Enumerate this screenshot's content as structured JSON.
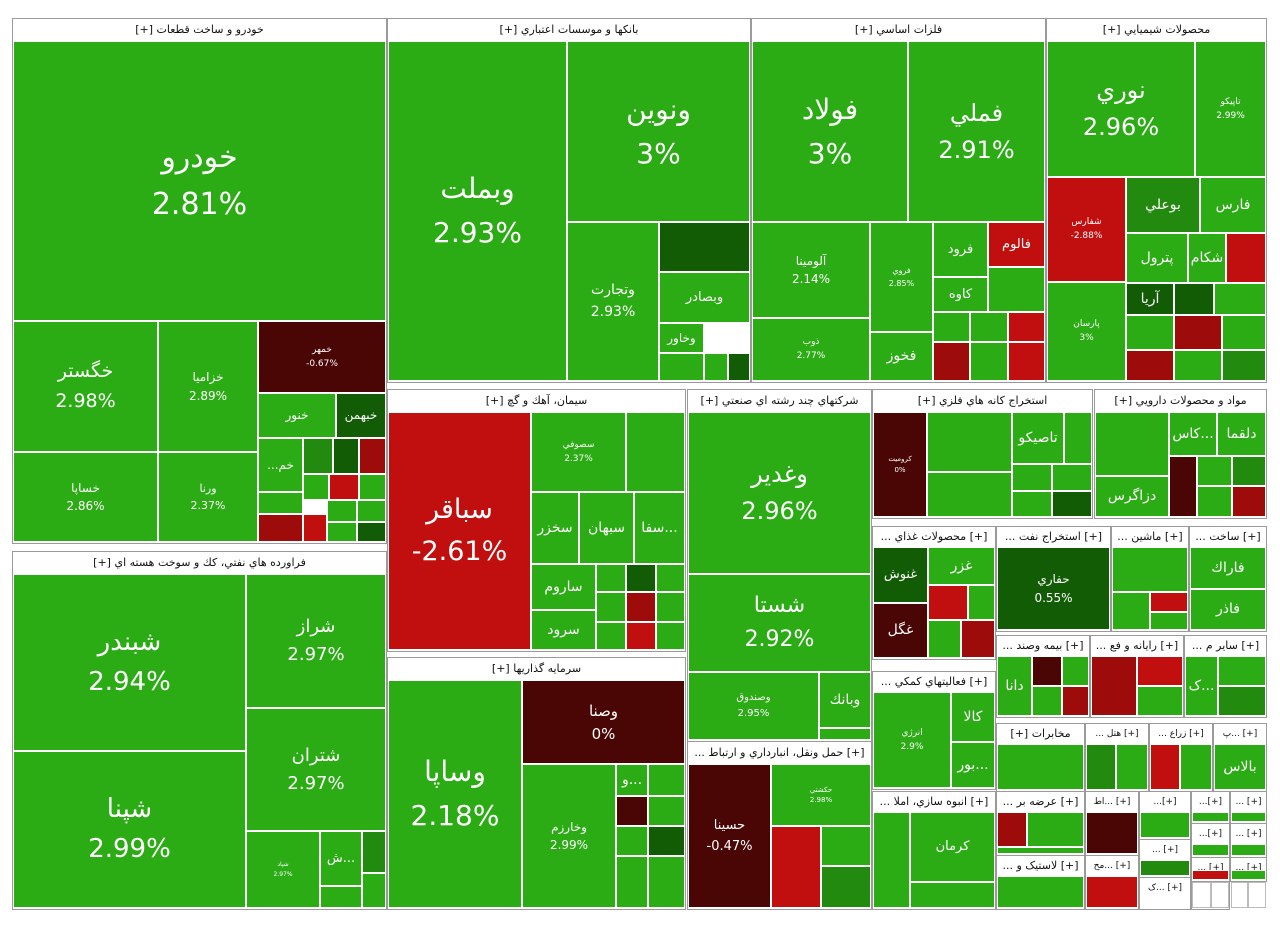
{
  "colors": {
    "up": "#2bab14",
    "up_mid": "#238a10",
    "up_dark": "#125c05",
    "down": "#c10f0f",
    "down_mid": "#9e0b0b",
    "down_dark": "#4a0505"
  },
  "sectors": [
    {
      "id": "auto",
      "title": "خودرو و ساخت قطعات [+]"
    },
    {
      "id": "bank",
      "title": "بانکها و موسسات اعتباري [+]"
    },
    {
      "id": "metal",
      "title": "فلزات اساسي [+]"
    },
    {
      "id": "chem",
      "title": "محصولات شيميايي [+]"
    },
    {
      "id": "oil",
      "title": "فراورده هاي نفتي، كك و سوخت هسته اي [+]"
    },
    {
      "id": "cement",
      "title": "سيمان، آهك و گچ [+]"
    },
    {
      "id": "multi",
      "title": "شرکتهاي چند رشته اي صنعتي [+]"
    },
    {
      "id": "mine",
      "title": "استخراج کانه هاي فلزي [+]"
    },
    {
      "id": "pharma",
      "title": "مواد و محصولات دارويي [+]"
    },
    {
      "id": "invest",
      "title": "سرمايه گذاريها [+]"
    },
    {
      "id": "food",
      "title": "[+] محصولات غذاي ..."
    },
    {
      "id": "oilext",
      "title": "[+] استخراج نفت ..."
    },
    {
      "id": "machine",
      "title": "[+] ماشين ..."
    },
    {
      "id": "build",
      "title": "[+] ساخت ..."
    },
    {
      "id": "transport",
      "title": "[+] حمل ونقل، انبارداري و ارتباط ..."
    },
    {
      "id": "insure",
      "title": "[+] بيمه وصند ..."
    },
    {
      "id": "computer",
      "title": "[+] رايانه و فع ..."
    },
    {
      "id": "other",
      "title": "[+] ساير م ..."
    },
    {
      "id": "support",
      "title": "[+] فعاليتهاي کمکي ..."
    },
    {
      "id": "telecom",
      "title": "مخابرات [+]"
    },
    {
      "id": "hotel",
      "title": "[+] هتل ..."
    },
    {
      "id": "farm",
      "title": "[+] زراع ..."
    },
    {
      "id": "pp",
      "title": "[+] ...پ"
    },
    {
      "id": "mass",
      "title": "[+] انبوه سازي، املا ..."
    },
    {
      "id": "arze",
      "title": "[+] عرضه بر ..."
    },
    {
      "id": "at",
      "title": "[+] ...اط"
    },
    {
      "id": "plastic",
      "title": "[+] لاستيک و ..."
    },
    {
      "id": "moh",
      "title": "[+] ...مح"
    },
    {
      "id": "k",
      "title": "[+] ...ک"
    },
    {
      "id": "s1",
      "title": "[+]..."
    },
    {
      "id": "s2",
      "title": "[+]..."
    },
    {
      "id": "s3",
      "title": "[+] ..."
    },
    {
      "id": "s4",
      "title": "[+] ..."
    },
    {
      "id": "s5",
      "title": "[+]..."
    },
    {
      "id": "s6",
      "title": "[+] ..."
    },
    {
      "id": "s7",
      "title": "[+] ..."
    },
    {
      "id": "s8",
      "title": "[+] ..."
    },
    {
      "id": "s9",
      "title": "[..."
    }
  ],
  "stocks": [
    {
      "sym": "خودرو",
      "chg": "2.81%"
    },
    {
      "sym": "خگستر",
      "chg": "2.98%"
    },
    {
      "sym": "خزاميا",
      "chg": "2.89%"
    },
    {
      "sym": "خمهر",
      "chg": "-0.67%"
    },
    {
      "sym": "خنور",
      "chg": ""
    },
    {
      "sym": "خبهمن",
      "chg": ""
    },
    {
      "sym": "خم...",
      "chg": ""
    },
    {
      "sym": "خساپا",
      "chg": "2.86%"
    },
    {
      "sym": "ورنا",
      "chg": "2.37%"
    },
    {
      "sym": "وبملت",
      "chg": "2.93%"
    },
    {
      "sym": "ونوين",
      "chg": "3%"
    },
    {
      "sym": "وتجارت",
      "chg": "2.93%"
    },
    {
      "sym": "وبصادر",
      "chg": ""
    },
    {
      "sym": "وخاور",
      "chg": ""
    },
    {
      "sym": "...و",
      "chg": ""
    },
    {
      "sym": "فولاد",
      "chg": "3%"
    },
    {
      "sym": "فملي",
      "chg": "2.91%"
    },
    {
      "sym": "آلومينا",
      "chg": "2.14%"
    },
    {
      "sym": "فروي",
      "chg": "2.85%"
    },
    {
      "sym": "فرود",
      "chg": ""
    },
    {
      "sym": "فالوم",
      "chg": ""
    },
    {
      "sym": "کاوه",
      "chg": ""
    },
    {
      "sym": "ذوب",
      "chg": "2.77%"
    },
    {
      "sym": "فخوز",
      "chg": ""
    },
    {
      "sym": "نوري",
      "chg": "2.96%"
    },
    {
      "sym": "تاپيکو",
      "chg": "2.99%"
    },
    {
      "sym": "شفارس",
      "chg": "-2.88%"
    },
    {
      "sym": "بوعلي",
      "chg": ""
    },
    {
      "sym": "فارس",
      "chg": ""
    },
    {
      "sym": "پترول",
      "chg": ""
    },
    {
      "sym": "شکام",
      "chg": ""
    },
    {
      "sym": "آريا",
      "chg": ""
    },
    {
      "sym": "پارسان",
      "chg": "3%"
    },
    {
      "sym": "شبندر",
      "chg": "2.94%"
    },
    {
      "sym": "شراز",
      "chg": "2.97%"
    },
    {
      "sym": "شتران",
      "chg": "2.97%"
    },
    {
      "sym": "شپنا",
      "chg": "2.99%"
    },
    {
      "sym": "شپاد",
      "chg": "2.97%"
    },
    {
      "sym": "...ش",
      "chg": ""
    },
    {
      "sym": "سباقر",
      "chg": "-2.61%"
    },
    {
      "sym": "سصوفي",
      "chg": "2.37%"
    },
    {
      "sym": "سخزر",
      "chg": ""
    },
    {
      "sym": "سبهان",
      "chg": ""
    },
    {
      "sym": "...سفا",
      "chg": ""
    },
    {
      "sym": "ساروم",
      "chg": ""
    },
    {
      "sym": "سرود",
      "chg": ""
    },
    {
      "sym": "وغدير",
      "chg": "2.96%"
    },
    {
      "sym": "شستا",
      "chg": "2.92%"
    },
    {
      "sym": "وصندوق",
      "chg": "2.95%"
    },
    {
      "sym": "وبانك",
      "chg": ""
    },
    {
      "sym": "تاصيكو",
      "chg": ""
    },
    {
      "sym": "کروميت",
      "chg": "0%"
    },
    {
      "sym": "دلقما",
      "chg": ""
    },
    {
      "sym": "...كاس",
      "chg": ""
    },
    {
      "sym": "دزاگرس",
      "chg": ""
    },
    {
      "sym": "وساپا",
      "chg": "2.18%"
    },
    {
      "sym": "وصنا",
      "chg": "0%"
    },
    {
      "sym": "وخارزم",
      "chg": "2.99%"
    },
    {
      "sym": "...و",
      "chg": ""
    },
    {
      "sym": "غزر",
      "chg": ""
    },
    {
      "sym": "غنوش",
      "chg": ""
    },
    {
      "sym": "غگل",
      "chg": ""
    },
    {
      "sym": "حفاري",
      "chg": "0.55%"
    },
    {
      "sym": "فاراك",
      "chg": ""
    },
    {
      "sym": "فاذر",
      "chg": ""
    },
    {
      "sym": "حسينا",
      "chg": "-0.47%"
    },
    {
      "sym": "حكشتي",
      "chg": "2.98%"
    },
    {
      "sym": "دانا",
      "chg": ""
    },
    {
      "sym": "...ک",
      "chg": ""
    },
    {
      "sym": "انرژي",
      "chg": "2.9%"
    },
    {
      "sym": "کالا",
      "chg": ""
    },
    {
      "sym": "...بور",
      "chg": ""
    },
    {
      "sym": "بالاس",
      "chg": ""
    },
    {
      "sym": "کرمان",
      "chg": ""
    }
  ]
}
